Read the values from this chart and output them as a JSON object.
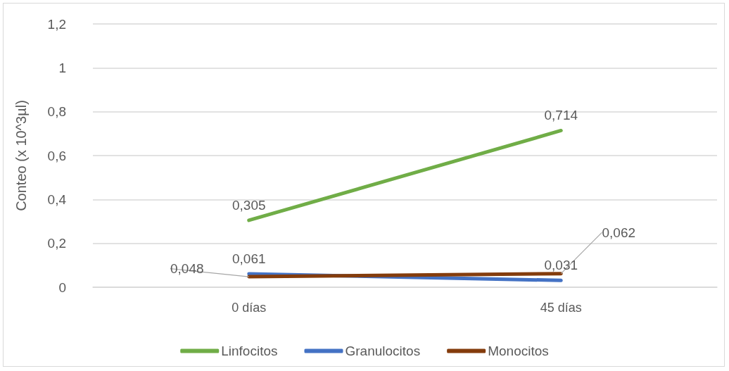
{
  "chart_data": {
    "type": "line",
    "ylabel": "Conteo (x 10^3µl)",
    "categories": [
      "0 días",
      "45 días"
    ],
    "series": [
      {
        "name": "Linfocitos",
        "color": "#70ad47",
        "values": [
          0.305,
          0.714
        ],
        "value_labels": [
          "0,305",
          "0,714"
        ]
      },
      {
        "name": "Granulocitos",
        "color": "#4472c4",
        "values": [
          0.061,
          0.031
        ],
        "value_labels": [
          "0,061",
          "0,031"
        ]
      },
      {
        "name": "Monocitos",
        "color": "#843c0c",
        "values": [
          0.048,
          0.062
        ],
        "value_labels": [
          "0,048",
          "0,062"
        ]
      }
    ],
    "ylim": [
      0,
      1.2
    ],
    "yticks": [
      0,
      {
        "value": 0.2,
        "label": "0,2"
      },
      {
        "value": 0.4,
        "label": "0,4"
      },
      {
        "value": 0.6,
        "label": "0,6"
      },
      {
        "value": 0.8,
        "label": "0,8"
      },
      1,
      {
        "value": 1.2,
        "label": "1,2"
      }
    ],
    "grid": "y",
    "legend": "bottom",
    "marker": "none",
    "line_style": "solid"
  }
}
